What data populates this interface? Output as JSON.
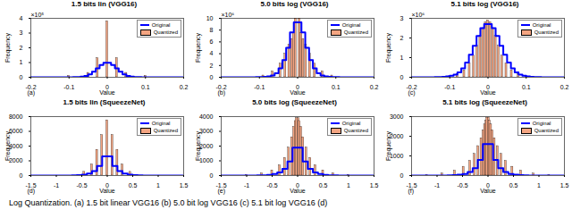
{
  "caption": "Log Quantization. (a) 1.5 bit linear VGG16 (b) 5.0 bit log VGG16 (c) 5.1 bit log VGG16 (d)",
  "chart_data": [
    {
      "type": "histogram",
      "title": "1.5 bits lin (VGG16)",
      "annotations": {
        "panel": "(a)",
        "y_multiplier": "×10⁵"
      },
      "xlabel": "Value",
      "ylabel": "Frequency",
      "legend": "top-right",
      "xlim": [
        -0.2,
        0.2
      ],
      "xticks": [
        -0.2,
        -0.1,
        0,
        0.1,
        0.2
      ],
      "ylim": [
        0,
        4
      ],
      "yticks": [
        0,
        1,
        2,
        3,
        4
      ],
      "series": [
        {
          "name": "Original",
          "type": "line",
          "color": "#0000ff",
          "bins": [
            -0.2,
            -0.19,
            -0.18,
            -0.17,
            -0.16,
            -0.15,
            -0.14,
            -0.13,
            -0.12,
            -0.11,
            -0.1,
            -0.09,
            -0.08,
            -0.07,
            -0.06,
            -0.05,
            -0.04,
            -0.03,
            -0.02,
            -0.01,
            0,
            0.01,
            0.02,
            0.03,
            0.04,
            0.05,
            0.06,
            0.07,
            0.08,
            0.09,
            0.1,
            0.11,
            0.12,
            0.13,
            0.14,
            0.15,
            0.16,
            0.17,
            0.18,
            0.19,
            0.2
          ],
          "values": [
            0,
            0,
            0,
            0,
            0,
            0,
            0.001,
            0.001,
            0.002,
            0.003,
            0.005,
            0.01,
            0.02,
            0.04,
            0.09,
            0.2,
            0.38,
            0.61,
            0.84,
            0.98,
            0.98,
            0.84,
            0.61,
            0.38,
            0.2,
            0.09,
            0.04,
            0.02,
            0.01,
            0.005,
            0.003,
            0.002,
            0.001,
            0.001,
            0,
            0,
            0,
            0,
            0,
            0
          ]
        },
        {
          "name": "Quantized",
          "type": "bar",
          "color": "#f4a582",
          "x": [
            -0.1,
            -0.05,
            -0.025,
            0,
            0.025,
            0.05,
            0.1
          ],
          "values": [
            0.1,
            0.3,
            1.3,
            3.8,
            1.3,
            0.3,
            0.1
          ]
        }
      ]
    },
    {
      "type": "histogram",
      "title": "5.0 bits log (VGG16)",
      "annotations": {
        "panel": "(b)",
        "y_multiplier": "×10⁶"
      },
      "xlabel": "Value",
      "ylabel": "Frequency",
      "legend": "top-right",
      "xlim": [
        -0.2,
        0.2
      ],
      "xticks": [
        -0.2,
        -0.1,
        0,
        0.1,
        0.2
      ],
      "ylim": [
        0,
        10
      ],
      "yticks": [
        0,
        2,
        4,
        6,
        8,
        10
      ],
      "series": [
        {
          "name": "Original",
          "type": "line",
          "color": "#0000ff",
          "bins": [
            -0.2,
            -0.19,
            -0.18,
            -0.17,
            -0.16,
            -0.15,
            -0.14,
            -0.13,
            -0.12,
            -0.11,
            -0.1,
            -0.09,
            -0.08,
            -0.07,
            -0.06,
            -0.05,
            -0.04,
            -0.03,
            -0.02,
            -0.01,
            0,
            0.01,
            0.02,
            0.03,
            0.04,
            0.05,
            0.06,
            0.07,
            0.08,
            0.09,
            0.1,
            0.11,
            0.12,
            0.13,
            0.14,
            0.15,
            0.16,
            0.17,
            0.18,
            0.19,
            0.2
          ],
          "values": [
            0,
            0,
            0,
            0,
            0,
            0,
            0,
            0,
            0.01,
            0.02,
            0.03,
            0.07,
            0.15,
            0.3,
            0.7,
            1.5,
            2.9,
            5.0,
            7.6,
            9.3,
            9.3,
            7.6,
            5.0,
            2.9,
            1.5,
            0.7,
            0.3,
            0.15,
            0.07,
            0.03,
            0.02,
            0.01,
            0,
            0,
            0,
            0,
            0,
            0,
            0,
            0
          ]
        },
        {
          "name": "Quantized",
          "type": "bar",
          "color": "#f4a582",
          "x": [
            -0.09,
            -0.065,
            -0.045,
            -0.032,
            -0.022,
            -0.015,
            -0.01,
            -0.005,
            0.005,
            0.01,
            0.015,
            0.022,
            0.032,
            0.045,
            0.065,
            0.09
          ],
          "values": [
            0.3,
            1.0,
            2.3,
            4.0,
            5.5,
            6.5,
            7.5,
            10,
            10,
            7.5,
            6.5,
            5.5,
            4.0,
            2.3,
            1.0,
            0.3
          ]
        }
      ]
    },
    {
      "type": "histogram",
      "title": "5.1 bits log (VGG16)",
      "annotations": {
        "panel": "(c)",
        "y_multiplier": "×10⁶"
      },
      "xlabel": "Value",
      "ylabel": "Frequency",
      "legend": "top-right",
      "xlim": [
        -0.2,
        0.2
      ],
      "xticks": [
        -0.2,
        -0.1,
        0,
        0.1,
        0.2
      ],
      "ylim": [
        0,
        3
      ],
      "yticks": [
        0,
        1,
        2,
        3
      ],
      "series": [
        {
          "name": "Original",
          "type": "line",
          "color": "#0000ff",
          "bins": [
            -0.2,
            -0.19,
            -0.18,
            -0.17,
            -0.16,
            -0.15,
            -0.14,
            -0.13,
            -0.12,
            -0.11,
            -0.1,
            -0.09,
            -0.08,
            -0.07,
            -0.06,
            -0.05,
            -0.04,
            -0.03,
            -0.02,
            -0.01,
            0,
            0.01,
            0.02,
            0.03,
            0.04,
            0.05,
            0.06,
            0.07,
            0.08,
            0.09,
            0.1,
            0.11,
            0.12,
            0.13,
            0.14,
            0.15,
            0.16,
            0.17,
            0.18,
            0.19,
            0.2
          ],
          "values": [
            0,
            0,
            0,
            0,
            0,
            0,
            0.01,
            0.01,
            0.02,
            0.04,
            0.08,
            0.14,
            0.25,
            0.45,
            0.75,
            1.15,
            1.6,
            2.1,
            2.5,
            2.7,
            2.7,
            2.5,
            2.1,
            1.6,
            1.15,
            0.75,
            0.45,
            0.25,
            0.14,
            0.08,
            0.04,
            0.02,
            0.01,
            0.01,
            0,
            0,
            0,
            0,
            0,
            0
          ]
        },
        {
          "name": "Quantized",
          "type": "bar",
          "color": "#f4a582",
          "x": [
            -0.1,
            -0.08,
            -0.062,
            -0.048,
            -0.037,
            -0.028,
            -0.02,
            -0.013,
            -0.006,
            0,
            0.006,
            0.013,
            0.02,
            0.028,
            0.037,
            0.048,
            0.062,
            0.08,
            0.1
          ],
          "values": [
            0.05,
            0.15,
            0.35,
            0.7,
            1.1,
            1.6,
            2.1,
            2.5,
            2.8,
            2.9,
            2.8,
            2.5,
            2.1,
            1.6,
            1.1,
            0.7,
            0.35,
            0.15,
            0.05
          ]
        }
      ]
    },
    {
      "type": "histogram",
      "title": "1.5 bits lin (SqueezeNet)",
      "annotations": {
        "panel": "(d)"
      },
      "xlabel": "Value",
      "ylabel": "Frequency",
      "legend": "top-right",
      "xlim": [
        -1.5,
        1.5
      ],
      "xticks": [
        -1.5,
        -1,
        -0.5,
        0,
        0.5,
        1,
        1.5
      ],
      "ylim": [
        0,
        8000
      ],
      "yticks": [
        0,
        2000,
        4000,
        6000,
        8000
      ],
      "series": [
        {
          "name": "Original",
          "type": "line",
          "color": "#0000ff",
          "bins": [
            -1.5,
            -1.4,
            -1.3,
            -1.2,
            -1.1,
            -1,
            -0.9,
            -0.8,
            -0.7,
            -0.6,
            -0.5,
            -0.4,
            -0.3,
            -0.2,
            -0.1,
            0,
            0.1,
            0.2,
            0.3,
            0.4,
            0.5,
            0.6,
            0.7,
            0.8,
            0.9,
            1,
            1.1,
            1.2,
            1.3,
            1.4,
            1.5
          ],
          "values": [
            0,
            0,
            0,
            1,
            2,
            4,
            8,
            15,
            30,
            60,
            130,
            280,
            600,
            1300,
            2600,
            2600,
            1300,
            600,
            280,
            130,
            60,
            30,
            15,
            8,
            4,
            2,
            1,
            0,
            0,
            0
          ]
        },
        {
          "name": "Quantized",
          "type": "bar",
          "color": "#f4a582",
          "x": [
            -0.45,
            -0.3,
            -0.2,
            -0.1,
            0,
            0.1,
            0.2,
            0.3,
            0.45
          ],
          "values": [
            500,
            1500,
            3500,
            5500,
            7500,
            5500,
            3500,
            1500,
            500
          ]
        }
      ]
    },
    {
      "type": "histogram",
      "title": "5.0 bits log (SqueezeNet)",
      "annotations": {
        "panel": "(e)"
      },
      "xlabel": "Value",
      "ylabel": "Frequency",
      "legend": "top-right",
      "xlim": [
        -1.5,
        1.5
      ],
      "xticks": [
        -1.5,
        -1,
        -0.5,
        0,
        0.5,
        1,
        1.5
      ],
      "ylim": [
        0,
        4000
      ],
      "yticks": [
        0,
        1000,
        2000,
        3000,
        4000
      ],
      "series": [
        {
          "name": "Original",
          "type": "line",
          "color": "#0000ff",
          "bins": [
            -1.5,
            -1.4,
            -1.3,
            -1.2,
            -1.1,
            -1,
            -0.9,
            -0.8,
            -0.7,
            -0.6,
            -0.5,
            -0.4,
            -0.3,
            -0.2,
            -0.1,
            0,
            0.1,
            0.2,
            0.3,
            0.4,
            0.5,
            0.6,
            0.7,
            0.8,
            0.9,
            1,
            1.1,
            1.2,
            1.3,
            1.4,
            1.5
          ],
          "values": [
            0,
            0,
            0,
            1,
            1,
            3,
            6,
            11,
            22,
            45,
            100,
            210,
            450,
            950,
            1900,
            1900,
            950,
            450,
            210,
            100,
            45,
            22,
            11,
            6,
            3,
            1,
            1,
            0,
            0,
            0
          ]
        },
        {
          "name": "Quantized",
          "type": "bar",
          "color": "#f4a582",
          "x": [
            -1.0,
            -0.7,
            -0.5,
            -0.35,
            -0.25,
            -0.17,
            -0.11,
            -0.07,
            -0.04,
            -0.02,
            0.02,
            0.04,
            0.07,
            0.11,
            0.17,
            0.25,
            0.35,
            0.5,
            0.7,
            1.0
          ],
          "values": [
            50,
            150,
            350,
            700,
            1200,
            1900,
            2600,
            3300,
            3700,
            3900,
            3900,
            3700,
            3300,
            2600,
            1900,
            1200,
            700,
            350,
            150,
            50
          ]
        }
      ]
    },
    {
      "type": "histogram",
      "title": "5.1 bits log (SqueezeNet)",
      "annotations": {
        "panel": "(f)"
      },
      "xlabel": "Value",
      "ylabel": "Frequency",
      "legend": "top-right",
      "xlim": [
        -1.5,
        1.5
      ],
      "xticks": [
        -1.5,
        -1,
        -0.5,
        0,
        0.5,
        1,
        1.5
      ],
      "ylim": [
        0,
        3000
      ],
      "yticks": [
        0,
        1000,
        2000,
        3000
      ],
      "series": [
        {
          "name": "Original",
          "type": "line",
          "color": "#0000ff",
          "bins": [
            -1.5,
            -1.4,
            -1.3,
            -1.2,
            -1.1,
            -1,
            -0.9,
            -0.8,
            -0.7,
            -0.6,
            -0.5,
            -0.4,
            -0.3,
            -0.2,
            -0.1,
            0,
            0.1,
            0.2,
            0.3,
            0.4,
            0.5,
            0.6,
            0.7,
            0.8,
            0.9,
            1,
            1.1,
            1.2,
            1.3,
            1.4,
            1.5
          ],
          "values": [
            0,
            0,
            0,
            1,
            1,
            3,
            5,
            10,
            20,
            40,
            85,
            180,
            380,
            800,
            1600,
            1600,
            800,
            380,
            180,
            85,
            40,
            20,
            10,
            5,
            3,
            1,
            1,
            0,
            0,
            0
          ]
        },
        {
          "name": "Quantized",
          "type": "bar",
          "color": "#f4a582",
          "x": [
            -1.2,
            -0.9,
            -0.65,
            -0.48,
            -0.35,
            -0.26,
            -0.19,
            -0.13,
            -0.09,
            -0.06,
            -0.035,
            -0.015,
            0.015,
            0.035,
            0.06,
            0.09,
            0.13,
            0.19,
            0.26,
            0.35,
            0.48,
            0.65,
            0.9,
            1.2
          ],
          "values": [
            30,
            100,
            250,
            450,
            750,
            1100,
            1500,
            1900,
            2300,
            2600,
            2800,
            2950,
            2950,
            2800,
            2600,
            2300,
            1900,
            1500,
            1100,
            750,
            450,
            250,
            100,
            30
          ]
        }
      ]
    }
  ]
}
